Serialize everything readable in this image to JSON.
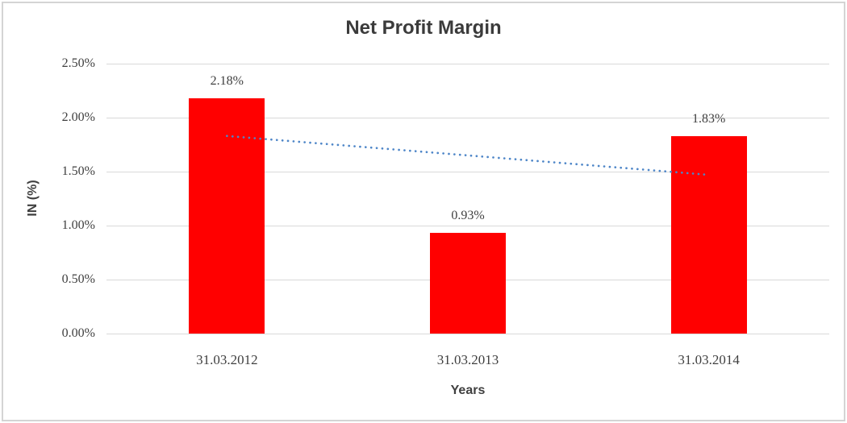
{
  "chart_data": {
    "type": "bar",
    "title": "Net Profit Margin",
    "xlabel": "Years",
    "ylabel": "IN (%)",
    "categories": [
      "31.03.2012",
      "31.03.2013",
      "31.03.2014"
    ],
    "values": [
      2.18,
      0.93,
      1.83
    ],
    "value_labels": [
      "2.18%",
      "0.93%",
      "1.83%"
    ],
    "ytick_values": [
      2.5,
      2.0,
      1.5,
      1.0,
      0.5,
      0.0
    ],
    "ytick_labels": [
      "2.50%",
      "2.00%",
      "1.50%",
      "1.00%",
      "0.50%",
      "0.00%"
    ],
    "ylim": [
      0,
      2.5
    ],
    "grid": true,
    "legend": false,
    "bar_color": "#ff0000",
    "trendline": {
      "type": "linear",
      "style": "dotted",
      "color": "#4e86c8",
      "start_value": 1.83,
      "end_value": 1.47
    }
  }
}
